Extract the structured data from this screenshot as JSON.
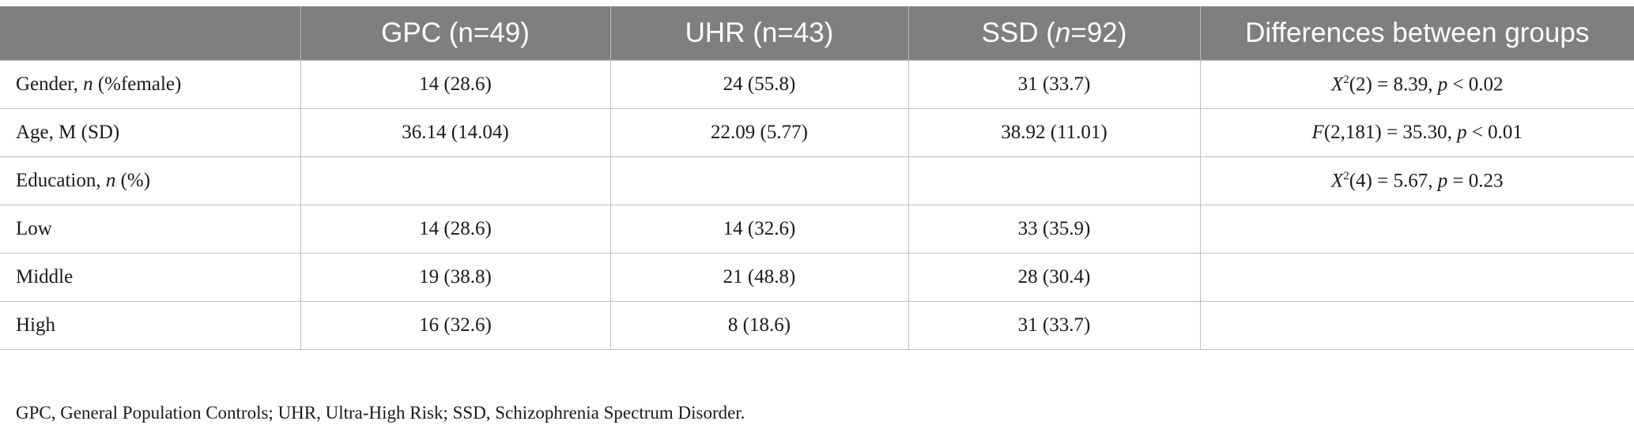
{
  "table": {
    "headers": {
      "col0": "",
      "gpc": "GPC (n=49)",
      "uhr": "UHR (n=43)",
      "ssd_prefix": "SSD (",
      "ssd_n": "n",
      "ssd_suffix": "=92)",
      "diff": "Differences between groups"
    },
    "rows": [
      {
        "label_prefix": "Gender, ",
        "label_italic": "n",
        "label_suffix": " (%female)",
        "gpc": "14 (28.6)",
        "uhr": "24 (55.8)",
        "ssd": "31 (33.7)",
        "diff_stat": "X",
        "diff_sup": "2",
        "diff_rest": "(2) = 8.39, ",
        "diff_p": "p",
        "diff_tail": " < 0.02"
      },
      {
        "label": "Age, M (SD)",
        "gpc": "36.14 (14.04)",
        "uhr": "22.09 (5.77)",
        "ssd": "38.92 (11.01)",
        "diff_stat": "F",
        "diff_rest": "(2,181) = 35.30, ",
        "diff_p": "p",
        "diff_tail": " < 0.01"
      },
      {
        "label_prefix": "Education, ",
        "label_italic": "n",
        "label_suffix": " (%)",
        "gpc": "",
        "uhr": "",
        "ssd": "",
        "diff_stat": "X",
        "diff_sup": "2",
        "diff_rest": "(4) = 5.67, ",
        "diff_p": "p",
        "diff_tail": " = 0.23"
      },
      {
        "label": "Low",
        "gpc": "14 (28.6)",
        "uhr": "14 (32.6)",
        "ssd": "33 (35.9)",
        "diff": ""
      },
      {
        "label": "Middle",
        "gpc": "19 (38.8)",
        "uhr": "21 (48.8)",
        "ssd": "28 (30.4)",
        "diff": ""
      },
      {
        "label": "High",
        "gpc": "16 (32.6)",
        "uhr": "8 (18.6)",
        "ssd": "31 (33.7)",
        "diff": ""
      }
    ]
  },
  "footnote": "GPC, General Population Controls; UHR, Ultra-High Risk; SSD, Schizophrenia Spectrum Disorder.",
  "colors": {
    "header_bg": "#7f7f7e",
    "header_text": "#ffffff",
    "rule": "#bfbfbf"
  }
}
